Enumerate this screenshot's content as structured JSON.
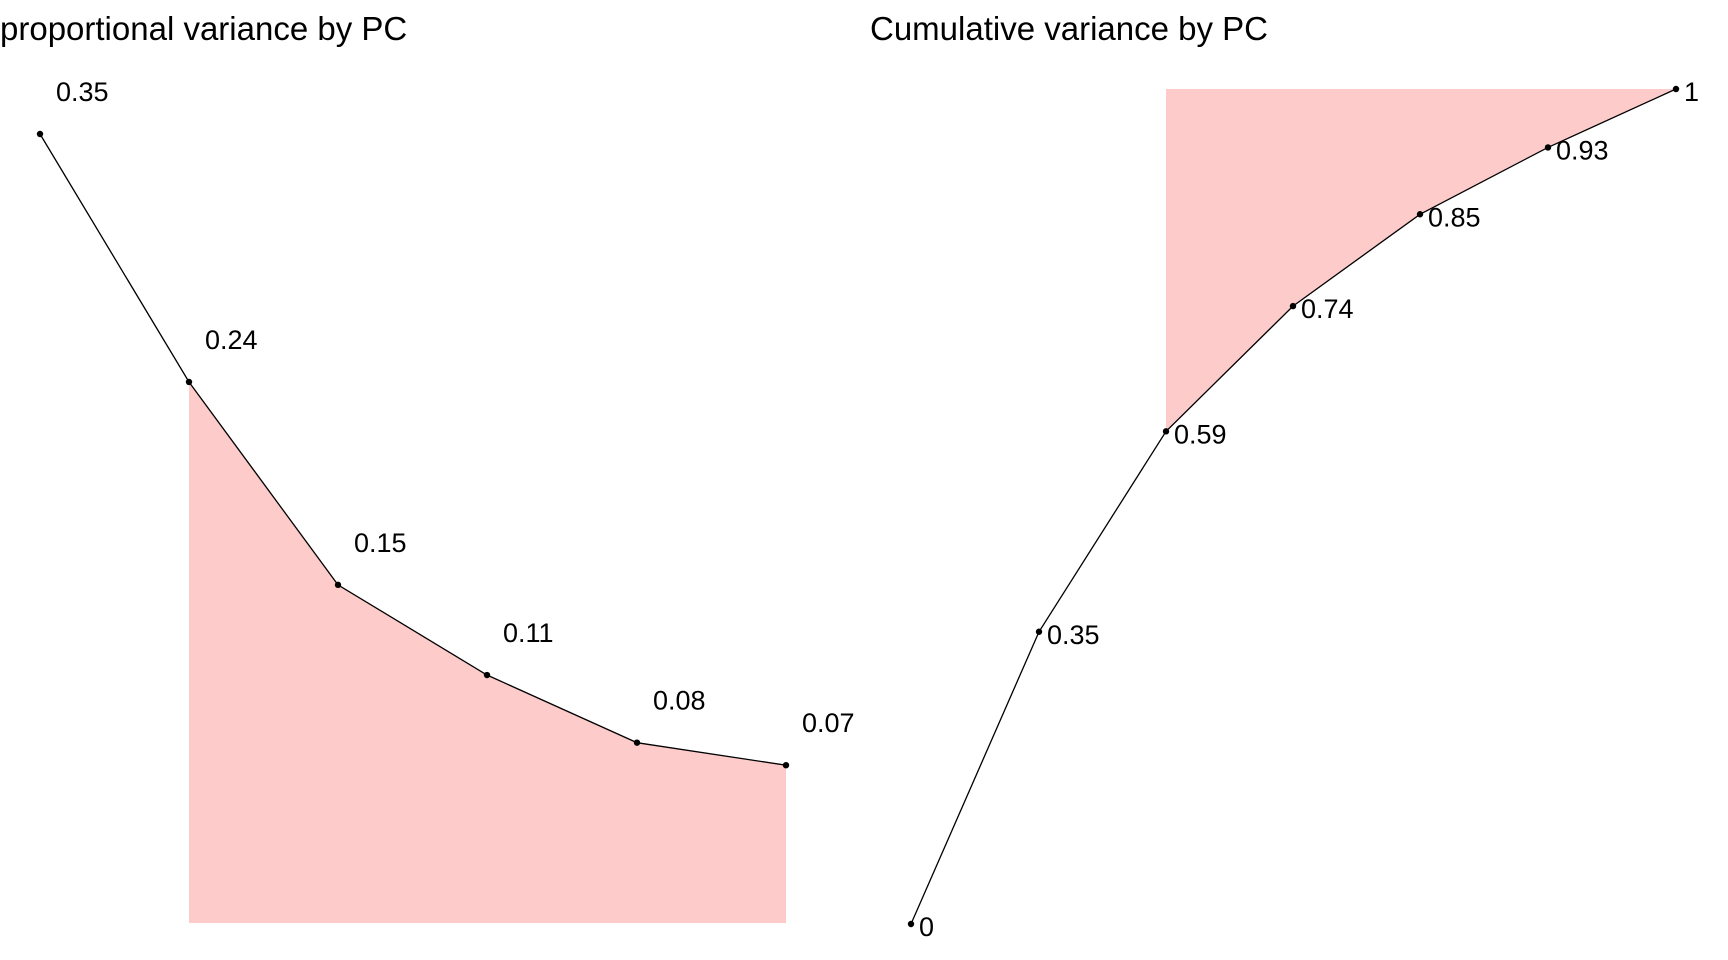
{
  "chart_data": [
    {
      "type": "line",
      "title": "proportional variance by PC",
      "xlabel": "",
      "ylabel": "",
      "x": [
        1,
        2,
        3,
        4,
        5,
        6
      ],
      "series": [
        {
          "values": [
            0.35,
            0.24,
            0.15,
            0.11,
            0.08,
            0.07
          ]
        }
      ],
      "data_labels": [
        "0.35",
        "0.24",
        "0.15",
        "0.11",
        "0.08",
        "0.07"
      ],
      "shaded_region": {
        "from_x": 2,
        "to_x": 6,
        "color": "#fccbca",
        "between": "line-and-baseline"
      },
      "ylim": [
        0,
        0.35
      ],
      "grid": false,
      "axes_visible": false,
      "legend": "none"
    },
    {
      "type": "line",
      "title": "Cumulative variance by PC",
      "xlabel": "",
      "ylabel": "",
      "x": [
        0,
        1,
        2,
        3,
        4,
        5,
        6
      ],
      "series": [
        {
          "values": [
            0,
            0.35,
            0.59,
            0.74,
            0.85,
            0.93,
            1
          ]
        }
      ],
      "data_labels": [
        "0",
        "0.35",
        "0.59",
        "0.74",
        "0.85",
        "0.93",
        "1"
      ],
      "shaded_region": {
        "from_x": 2,
        "to_x": 6,
        "color": "#fccbca",
        "between": "line-and-top"
      },
      "ylim": [
        0,
        1
      ],
      "grid": false,
      "axes_visible": false,
      "legend": "none"
    }
  ],
  "colors": {
    "line": "#000000",
    "shade": "#fccbca",
    "text": "#000000",
    "background": "#ffffff"
  }
}
